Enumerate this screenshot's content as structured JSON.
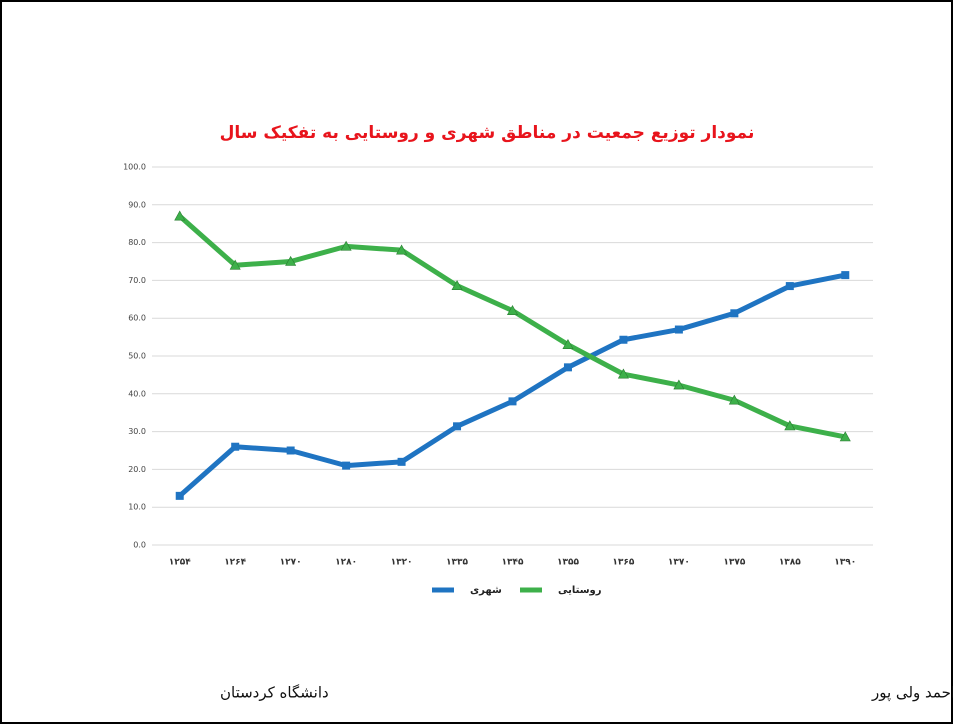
{
  "chart_data": {
    "type": "line",
    "title": "نمودار توزیع جمعیت در مناطق شهری و روستایی به تفکیک سال",
    "categories": [
      "۱۲۵۴",
      "۱۲۶۴",
      "۱۲۷۰",
      "۱۲۸۰",
      "۱۳۲۰",
      "۱۳۳۵",
      "۱۳۴۵",
      "۱۳۵۵",
      "۱۳۶۵",
      "۱۳۷۰",
      "۱۳۷۵",
      "۱۳۸۵",
      "۱۳۹۰"
    ],
    "series": [
      {
        "name": "شهری",
        "color": "#1f74c2",
        "marker": "square",
        "values": [
          13,
          26,
          25,
          21,
          22,
          31.4,
          38,
          47,
          54.3,
          57,
          61.3,
          68.5,
          71.4
        ]
      },
      {
        "name": "روستایی",
        "color": "#3db04a",
        "marker": "triangle",
        "values": [
          87,
          74,
          75,
          79,
          78,
          68.6,
          62,
          53,
          45.2,
          42.3,
          38.3,
          31.5,
          28.6
        ]
      }
    ],
    "ylim": [
      0,
      100
    ],
    "yticks": [
      {
        "value": 0,
        "label": "0.0"
      },
      {
        "value": 10,
        "label": "10.0"
      },
      {
        "value": 20,
        "label": "20.0"
      },
      {
        "value": 30,
        "label": "30.0"
      },
      {
        "value": 40,
        "label": "40.0"
      },
      {
        "value": 50,
        "label": "50.0"
      },
      {
        "value": 60,
        "label": "60.0"
      },
      {
        "value": 70,
        "label": "70.0"
      },
      {
        "value": 80,
        "label": "80.0"
      },
      {
        "value": 90,
        "label": "90.0"
      },
      {
        "value": 100,
        "label": "100.0"
      }
    ],
    "grid": true
  },
  "footer": {
    "left": "دانشگاه کردستان",
    "right": "احمد ولی پور"
  }
}
